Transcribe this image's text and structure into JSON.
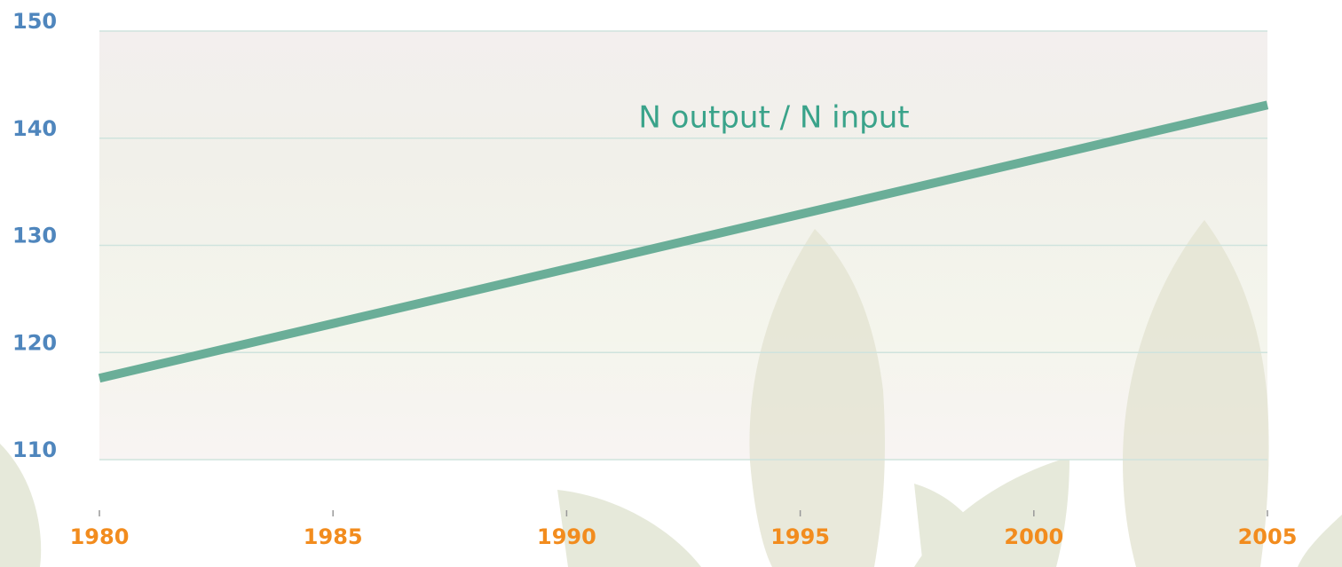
{
  "chart_data": {
    "type": "line",
    "x": [
      1980,
      2005
    ],
    "series": [
      {
        "name": "N output / N input",
        "color": "#6aae98",
        "values": [
          117.6,
          143.1
        ]
      }
    ],
    "xlim": [
      1980,
      2005
    ],
    "xticks": [
      1980,
      1985,
      1990,
      1995,
      2000,
      2005
    ],
    "ylim": [
      110,
      150
    ],
    "yticks": [
      110,
      120,
      130,
      140,
      150
    ],
    "grid": true
  }
}
